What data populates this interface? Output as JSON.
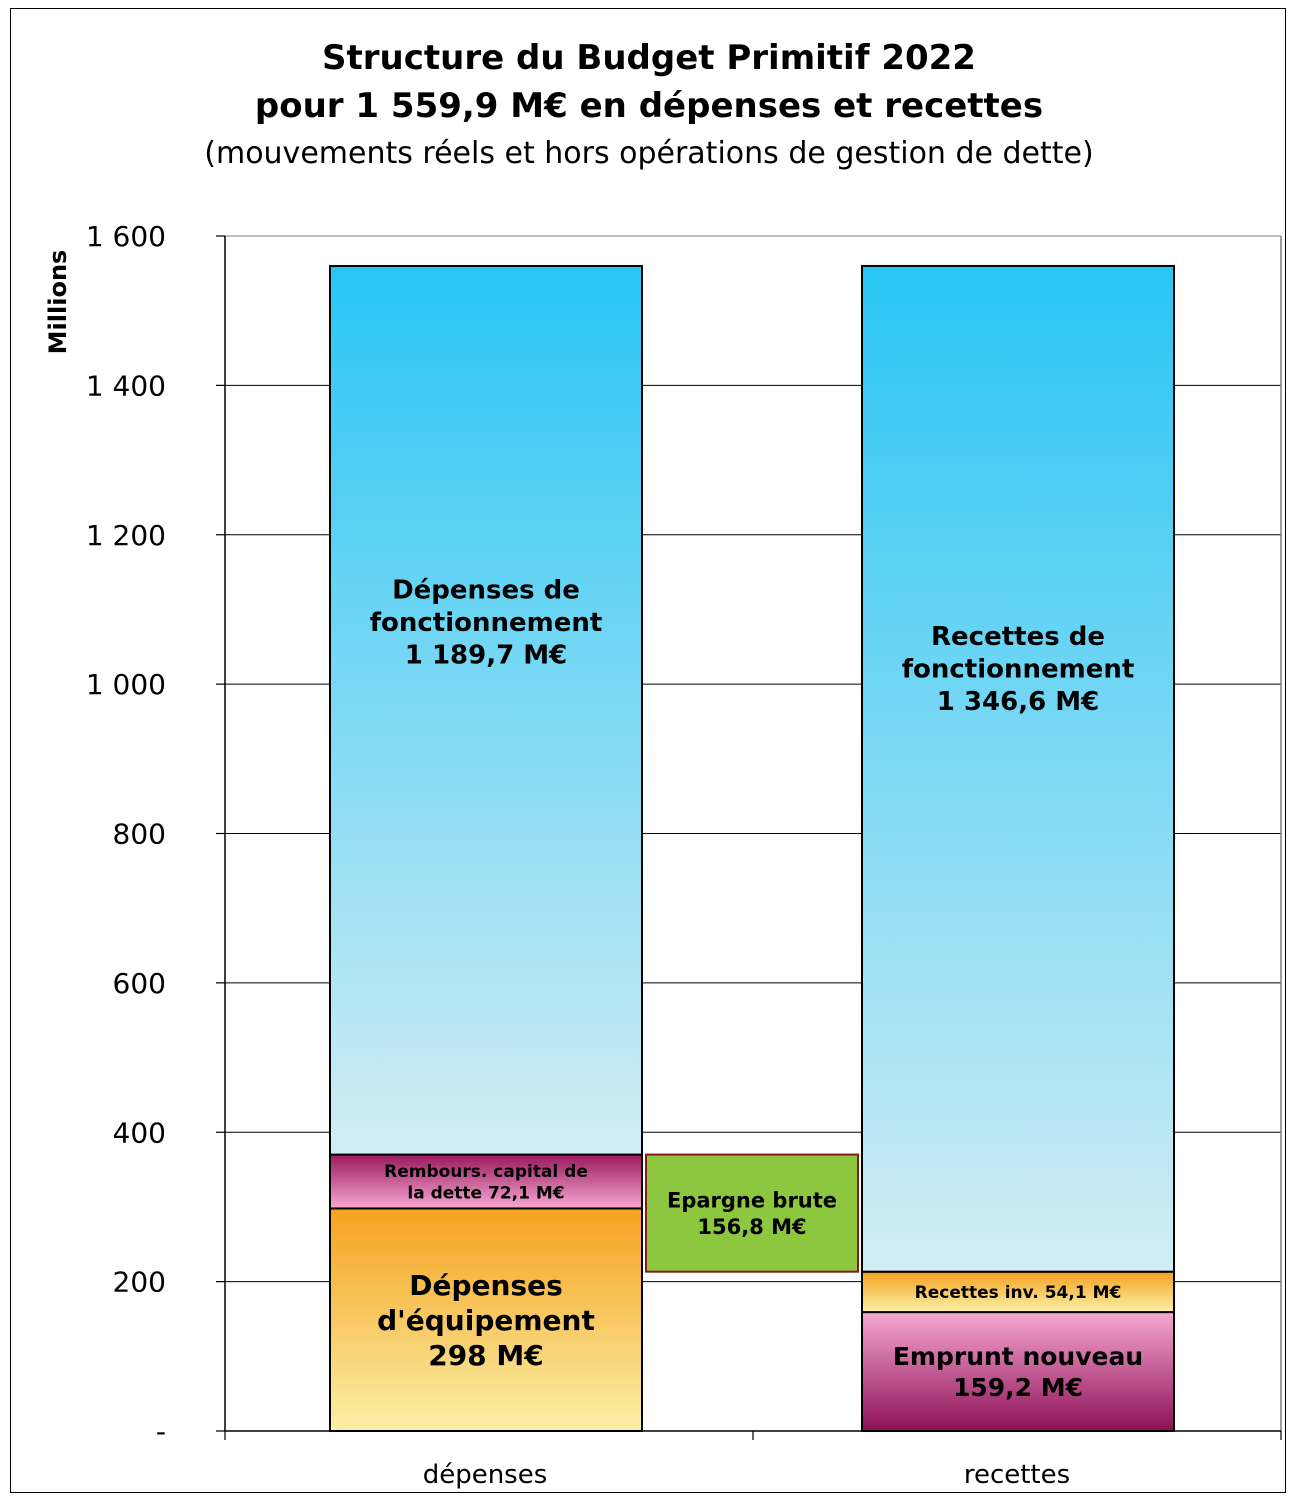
{
  "chart_data": {
    "type": "bar",
    "stacked": true,
    "title": "Structure du Budget Primitif 2022",
    "subtitle": "pour 1 559,9 M€ en dépenses et recettes",
    "note": "(mouvements réels et hors opérations de gestion de dette)",
    "ylabel": "Millions",
    "ylim": [
      0,
      1600
    ],
    "yticks": [
      0,
      200,
      400,
      600,
      800,
      1000,
      1200,
      1400,
      1600
    ],
    "ytick_labels": [
      "-",
      "200",
      "400",
      "600",
      "800",
      "1 000",
      "1 200",
      "1 400",
      "1 600"
    ],
    "categories": [
      "dépenses",
      "recettes"
    ],
    "grid": true,
    "segments": [
      {
        "category": "dépenses",
        "bottom": 0,
        "value": 298.0,
        "label_lines": [
          "Dépenses",
          "d'équipement",
          "298 M€"
        ],
        "fill_top": "#f5a21f",
        "fill_bottom": "#faf0a8"
      },
      {
        "category": "dépenses",
        "bottom": 298.0,
        "value": 72.1,
        "label_lines": [
          "Rembours. capital de",
          "la dette 72,1 M€"
        ],
        "fill_top": "#99195f",
        "fill_bottom": "#f7a8d2"
      },
      {
        "category": "dépenses",
        "bottom": 370.1,
        "value": 1189.7,
        "label_lines": [
          "Dépenses de",
          "fonctionnement",
          "1 189,7 M€"
        ],
        "fill_top": "#29c5f5",
        "fill_bottom": "#d2edf3"
      },
      {
        "category": "recettes",
        "bottom": 0,
        "value": 159.2,
        "label_lines": [
          "Emprunt nouveau",
          "159,2 M€"
        ],
        "fill_top": "#f7a8d2",
        "fill_bottom": "#8c1056"
      },
      {
        "category": "recettes",
        "bottom": 159.2,
        "value": 54.1,
        "label_lines": [
          "Recettes inv. 54,1 M€"
        ],
        "fill_top": "#f5a21f",
        "fill_bottom": "#faf0a8"
      },
      {
        "category": "recettes",
        "bottom": 213.3,
        "value": 1346.6,
        "label_lines": [
          "Recettes de",
          "fonctionnement",
          "1 346,6 M€"
        ],
        "fill_top": "#29c5f5",
        "fill_bottom": "#d2edf3"
      }
    ],
    "floating": {
      "bottom": 213.3,
      "value": 156.8,
      "label_lines": [
        "Epargne brute",
        "156,8 M€"
      ],
      "fill": "#8dc63f",
      "border": "#8b1a1a"
    }
  }
}
